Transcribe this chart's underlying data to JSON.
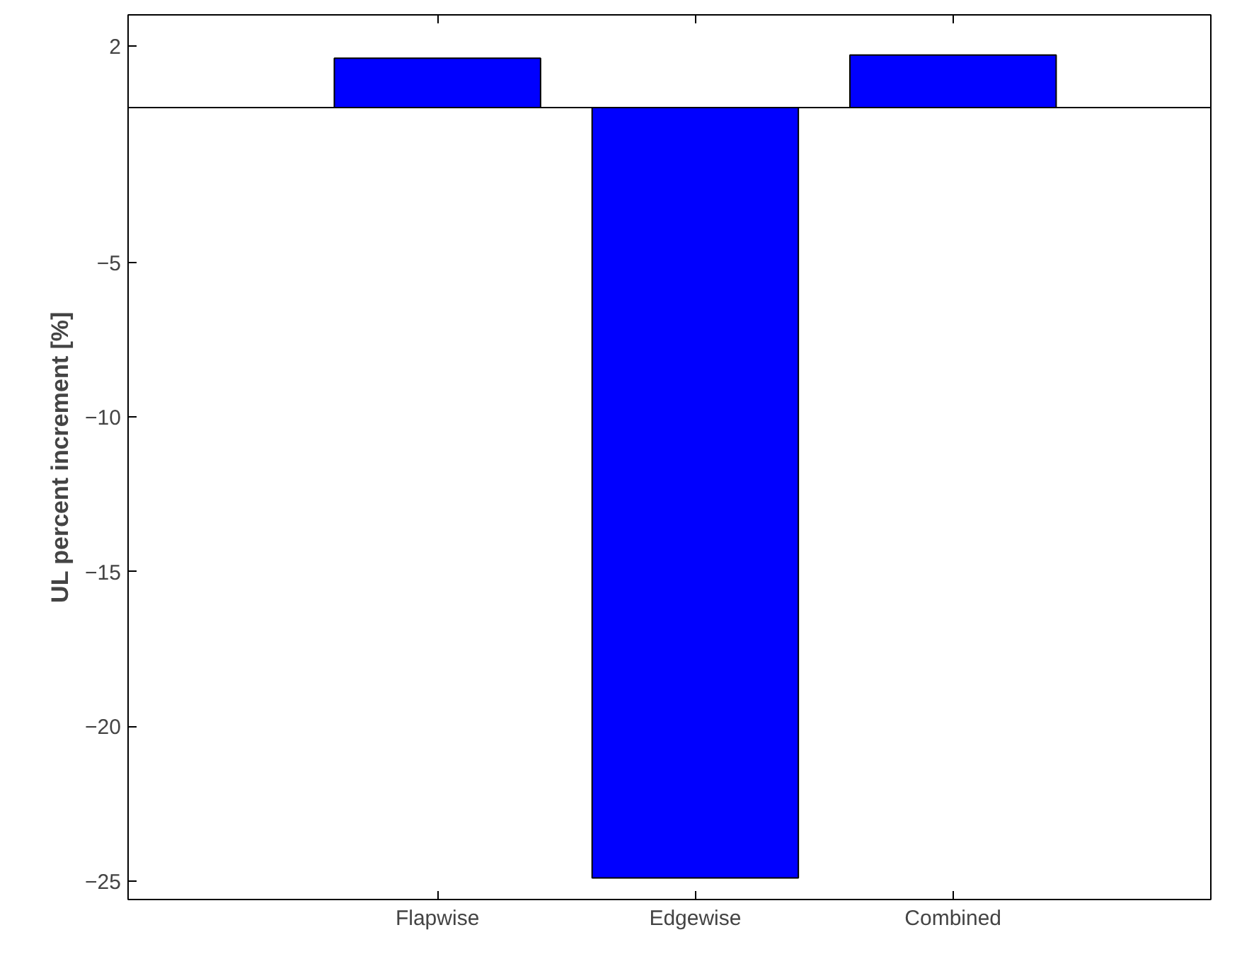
{
  "chart_data": {
    "type": "bar",
    "ylabel": "UL percent increment [%]",
    "categories": [
      "Flapwise",
      "Edgewise",
      "Combined"
    ],
    "values": [
      1.6,
      -24.9,
      1.7
    ],
    "color": "#0000ff",
    "ylim": [
      -25.6,
      3
    ],
    "yticks": [
      2,
      -5,
      -10,
      -15,
      -20,
      -25
    ],
    "grid": false
  }
}
